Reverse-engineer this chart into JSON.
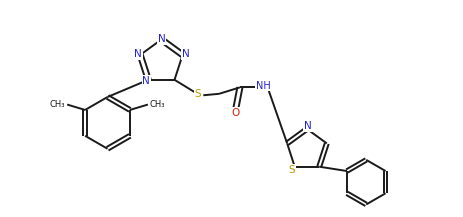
{
  "bg_color": "#ffffff",
  "line_color": "#1a1a1a",
  "n_color": "#2222cc",
  "s_color": "#bb9900",
  "o_color": "#cc2200",
  "line_width": 1.4,
  "figsize": [
    4.63,
    2.17
  ],
  "dpi": 100,
  "xlim": [
    0,
    10
  ],
  "ylim": [
    -1.5,
    4.5
  ]
}
